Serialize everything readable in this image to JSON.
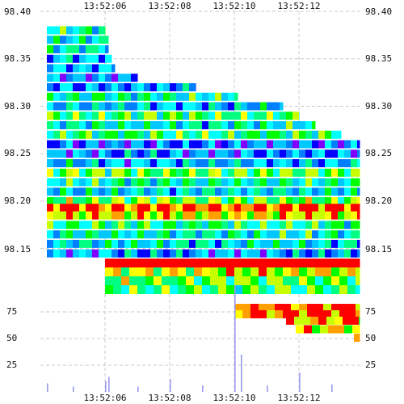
{
  "chart_data": {
    "type": "heatmap",
    "title": "",
    "xlabel": "",
    "ylabel": "",
    "x_tick_labels": [
      "13:52:06",
      "13:52:08",
      "13:52:10",
      "13:52:12"
    ],
    "x_range_seconds": [
      "13:52:04",
      "13:52:14"
    ],
    "price_axis": {
      "tick_labels": [
        "98.40",
        "98.35",
        "98.30",
        "98.25",
        "98.20",
        "98.15"
      ],
      "ylim": [
        98.135,
        98.4
      ]
    },
    "volume_axis": {
      "tick_labels": [
        "75",
        "50",
        "25"
      ],
      "ylim": [
        0,
        100
      ]
    },
    "grid": true,
    "colormap": [
      "#7f00ff",
      "#0000ff",
      "#0080ff",
      "#00c8ff",
      "#00ffff",
      "#00ff80",
      "#00ff00",
      "#c8ff00",
      "#ffff00",
      "#ffa000",
      "#ff0000"
    ],
    "price_heatmap_bands": [
      {
        "price": 98.38,
        "start": "13:52:04.2",
        "end": "13:52:06.0",
        "level": 0.45
      },
      {
        "price": 98.37,
        "start": "13:52:04.2",
        "end": "13:52:06.1",
        "level": 0.38
      },
      {
        "price": 98.36,
        "start": "13:52:04.2",
        "end": "13:52:06.1",
        "level": 0.4
      },
      {
        "price": 98.35,
        "start": "13:52:04.2",
        "end": "13:52:06.2",
        "level": 0.32
      },
      {
        "price": 98.34,
        "start": "13:52:04.2",
        "end": "13:52:06.3",
        "level": 0.28
      },
      {
        "price": 98.33,
        "start": "13:52:04.2",
        "end": "13:52:07.0",
        "level": 0.2
      },
      {
        "price": 98.32,
        "start": "13:52:04.2",
        "end": "13:52:08.8",
        "level": 0.25
      },
      {
        "price": 98.31,
        "start": "13:52:04.2",
        "end": "13:52:10.1",
        "level": 0.45
      },
      {
        "price": 98.3,
        "start": "13:52:04.2",
        "end": "13:52:11.5",
        "level": 0.3
      },
      {
        "price": 98.29,
        "start": "13:52:04.2",
        "end": "13:52:12.0",
        "level": 0.55
      },
      {
        "price": 98.28,
        "start": "13:52:04.2",
        "end": "13:52:12.5",
        "level": 0.4
      },
      {
        "price": 98.27,
        "start": "13:52:04.2",
        "end": "13:52:13.3",
        "level": 0.52
      },
      {
        "price": 98.26,
        "start": "13:52:04.2",
        "end": "13:52:13.9",
        "level": 0.18
      },
      {
        "price": 98.25,
        "start": "13:52:04.2",
        "end": "13:52:13.9",
        "level": 0.22
      },
      {
        "price": 98.24,
        "start": "13:52:04.2",
        "end": "13:52:13.9",
        "level": 0.3
      },
      {
        "price": 98.23,
        "start": "13:52:04.2",
        "end": "13:52:13.9",
        "level": 0.6
      },
      {
        "price": 98.22,
        "start": "13:52:04.2",
        "end": "13:52:13.9",
        "level": 0.45
      },
      {
        "price": 98.21,
        "start": "13:52:04.2",
        "end": "13:52:13.9",
        "level": 0.35
      },
      {
        "price": 98.2,
        "start": "13:52:04.2",
        "end": "13:52:13.9",
        "level": 0.62
      },
      {
        "price": 98.193,
        "start": "13:52:04.2",
        "end": "13:52:13.9",
        "level": 0.98
      },
      {
        "price": 98.185,
        "start": "13:52:04.2",
        "end": "13:52:13.9",
        "level": 0.78
      },
      {
        "price": 98.175,
        "start": "13:52:04.2",
        "end": "13:52:13.9",
        "level": 0.5
      },
      {
        "price": 98.165,
        "start": "13:52:04.2",
        "end": "13:52:13.9",
        "level": 0.42
      },
      {
        "price": 98.155,
        "start": "13:52:04.2",
        "end": "13:52:13.9",
        "level": 0.38
      },
      {
        "price": 98.145,
        "start": "13:52:04.2",
        "end": "13:52:13.9",
        "level": 0.25
      }
    ],
    "ask_heatmap_bands": [
      {
        "price": 98.138,
        "start": "13:52:06.0",
        "end": "13:52:13.9",
        "level": 1.0
      },
      {
        "price": 98.13,
        "start": "13:52:06.0",
        "end": "13:52:13.9",
        "level": 0.75
      },
      {
        "price": 98.123,
        "start": "13:52:06.0",
        "end": "13:52:13.9",
        "level": 0.6
      },
      {
        "price": 98.115,
        "start": "13:52:06.0",
        "end": "13:52:13.9",
        "level": 0.55
      }
    ],
    "volume_heatmap_bands": [
      {
        "volume": 78,
        "start": "13:52:10.0",
        "end": "13:52:13.9",
        "level": 0.98
      },
      {
        "volume": 72,
        "start": "13:52:10.0",
        "end": "13:52:13.9",
        "level": 0.95
      },
      {
        "volume": 66,
        "start": "13:52:11.6",
        "end": "13:52:13.9",
        "level": 0.85
      },
      {
        "volume": 58,
        "start": "13:52:11.9",
        "end": "13:52:13.9",
        "level": 0.8
      },
      {
        "volume": 50,
        "start": "13:52:13.7",
        "end": "13:52:13.9",
        "level": 0.82
      }
    ],
    "volume_bars": [
      {
        "time": "13:52:04.2",
        "volume": 8
      },
      {
        "time": "13:52:05.0",
        "volume": 5
      },
      {
        "time": "13:52:06.0",
        "volume": 10
      },
      {
        "time": "13:52:06.1",
        "volume": 14
      },
      {
        "time": "13:52:07.0",
        "volume": 5
      },
      {
        "time": "13:52:08.0",
        "volume": 12
      },
      {
        "time": "13:52:09.0",
        "volume": 6
      },
      {
        "time": "13:52:10.0",
        "volume": 100
      },
      {
        "time": "13:52:10.2",
        "volume": 35
      },
      {
        "time": "13:52:11.0",
        "volume": 6
      },
      {
        "time": "13:52:12.0",
        "volume": 18
      },
      {
        "time": "13:52:13.0",
        "volume": 7
      }
    ]
  }
}
